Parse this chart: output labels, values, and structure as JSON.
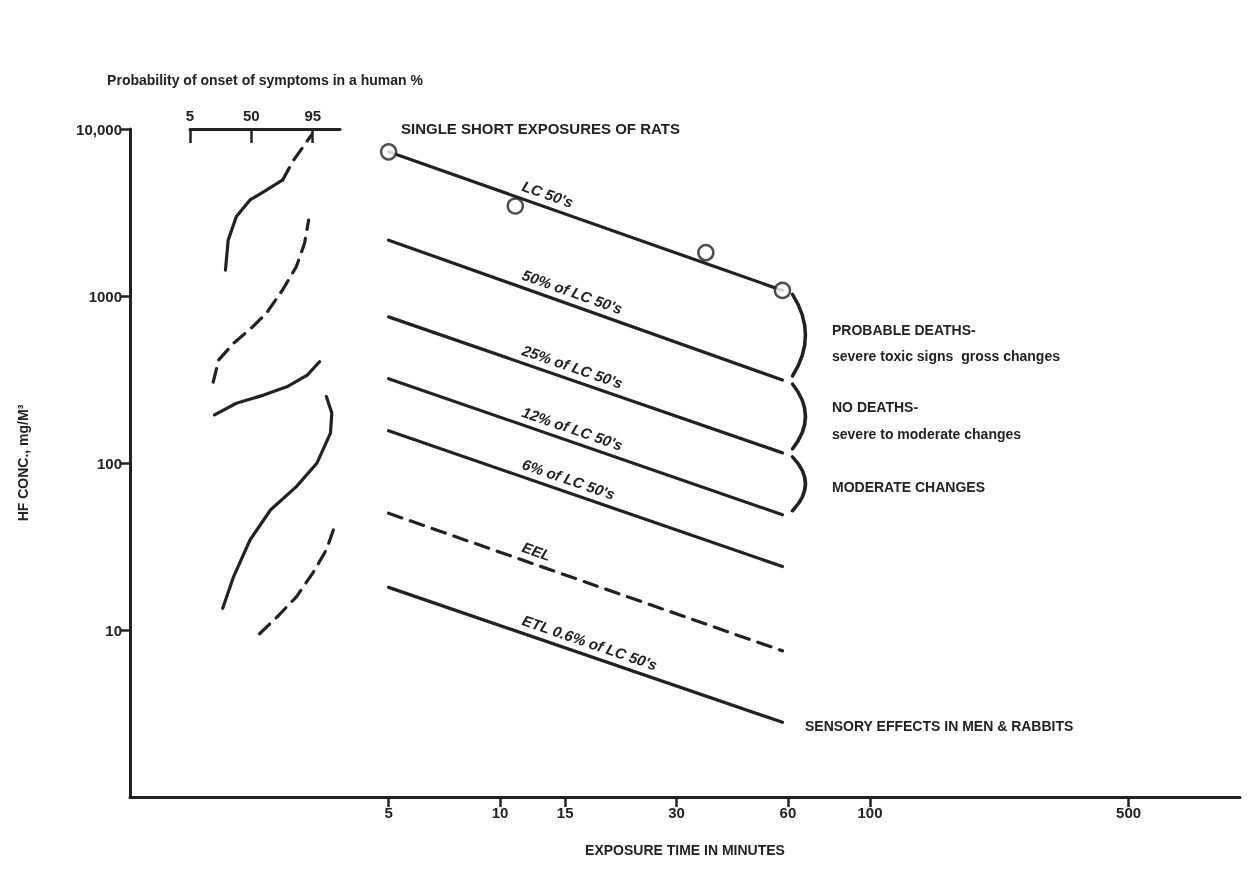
{
  "chart_data": {
    "type": "line",
    "title": "SINGLE SHORT EXPOSURES OF RATS",
    "xlabel": "EXPOSURE TIME IN MINUTES",
    "ylabel": "HF CONC., mg/M³",
    "x2label": "Probability of onset of symptoms in a human %",
    "log": "xy",
    "grid": false,
    "marker": "none",
    "line_style": "solid",
    "xlim": [
      1,
      1000
    ],
    "xticks": [
      5,
      10,
      15,
      30,
      60,
      100,
      500
    ],
    "ylim": [
      1,
      10000
    ],
    "yticks": [
      10,
      100,
      1000,
      {
        "value": 10000,
        "label": "10,000"
      }
    ],
    "x2lim": [
      5,
      115
    ],
    "x2ticks": [
      5,
      50,
      95
    ],
    "series": [
      {
        "name": "LC 50's",
        "color": "#222222",
        "x": [
          5,
          58
        ],
        "values": [
          7300,
          1080
        ]
      },
      {
        "type": "scatter",
        "marker": "circle",
        "color": "#222222",
        "x": [
          5,
          11,
          36,
          58
        ],
        "values": [
          7300,
          3460,
          1820,
          1080
        ]
      },
      {
        "name": "50% of LC 50's",
        "color": "#222222",
        "x": [
          5,
          58
        ],
        "values": [
          2160,
          314
        ]
      },
      {
        "name": "25% of LC 50's",
        "color": "#222222",
        "x": [
          5,
          58
        ],
        "values": [
          750,
          115
        ]
      },
      {
        "name": "12% of LC 50's",
        "color": "#222222",
        "x": [
          5,
          58
        ],
        "values": [
          320,
          49
        ]
      },
      {
        "name": "6% of LC 50's",
        "color": "#222222",
        "x": [
          5,
          58
        ],
        "values": [
          156,
          24
        ]
      },
      {
        "name": "EEL",
        "color": "#222222",
        "line_style": "dashed",
        "x": [
          5,
          58
        ],
        "values": [
          50,
          7.5
        ]
      },
      {
        "name": "ETL 0.6% of LC 50's",
        "color": "#222222",
        "x": [
          5,
          58
        ],
        "values": [
          18,
          2.8
        ]
      },
      {
        "axis": "x2",
        "color": "#222222",
        "x": [
          31,
          33,
          39,
          49,
          61,
          73
        ],
        "values": [
          1430,
          2160,
          2990,
          3760,
          4310,
          4960
        ]
      },
      {
        "axis": "x2",
        "color": "#222222",
        "line_style": "dashed",
        "x": [
          73,
          81,
          88,
          94
        ],
        "values": [
          4960,
          6520,
          7830,
          9200
        ]
      },
      {
        "axis": "x2",
        "color": "#222222",
        "line_style": "dashed",
        "x": [
          22,
          26,
          37,
          51,
          61,
          73,
          83,
          89,
          92
        ],
        "values": [
          305,
          414,
          521,
          655,
          788,
          1090,
          1500,
          2070,
          2850
        ]
      },
      {
        "axis": "x2",
        "color": "#222222",
        "x": [
          23,
          39,
          59,
          76,
          91,
          100
        ],
        "values": [
          194,
          228,
          255,
          286,
          336,
          404
        ]
      },
      {
        "axis": "x2",
        "color": "#222222",
        "x": [
          29,
          37,
          49,
          64,
          83,
          98,
          108,
          109,
          105
        ],
        "values": [
          13.5,
          20.9,
          34.6,
          52.3,
          72.2,
          99.6,
          151,
          199,
          250
        ]
      },
      {
        "axis": "x2",
        "color": "#222222",
        "line_style": "dashed",
        "x": [
          56,
          69,
          83,
          95,
          105,
          111
        ],
        "values": [
          9.5,
          12,
          15.8,
          21.9,
          30.2,
          41.6
        ]
      }
    ],
    "annotations": [
      "PROBABLE DEATHS-",
      "severe toxic signs  gross changes",
      "NO DEATHS-",
      "severe to moderate changes",
      "MODERATE CHANGES",
      "SENSORY EFFECTS IN MEN & RABBITS"
    ]
  }
}
